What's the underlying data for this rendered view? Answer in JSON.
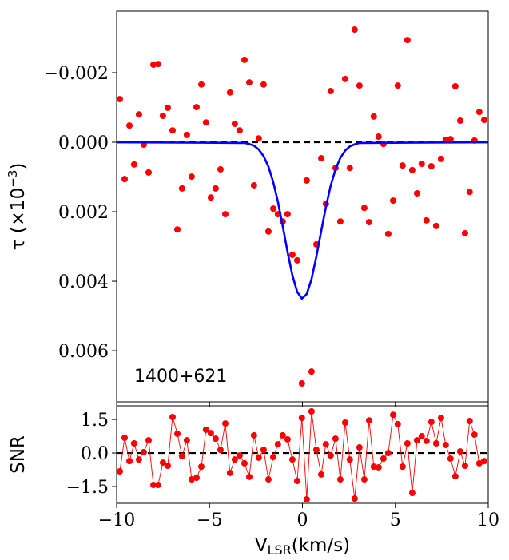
{
  "chart_data": [
    {
      "type": "scatter",
      "ylabel": [
        "τ (×10",
        "−3",
        ")"
      ],
      "annotation": "1400+621",
      "xlim": [
        -10,
        10
      ],
      "xticks": [
        -10,
        -5,
        0,
        5,
        10
      ],
      "xtick_labels": false,
      "ylim": [
        0.00747,
        -0.00377
      ],
      "yticks": [
        {
          "value": -0.002,
          "label": "−0.002"
        },
        {
          "value": 0,
          "label": "0.000"
        },
        {
          "value": 0.002,
          "label": "0.002"
        },
        {
          "value": 0.004,
          "label": "0.004"
        },
        {
          "value": 0.006,
          "label": "0.006"
        }
      ],
      "reference_line": 0,
      "series": [
        {
          "mode": "markers",
          "color": "#ff0000",
          "x": [
            -9.83,
            -9.57,
            -9.31,
            -9.06,
            -8.8,
            -8.54,
            -8.28,
            -8.02,
            -7.77,
            -7.51,
            -7.25,
            -6.99,
            -6.73,
            -6.48,
            -6.22,
            -5.96,
            -5.7,
            -5.44,
            -5.19,
            -4.93,
            -4.67,
            -4.41,
            -4.15,
            -3.9,
            -3.64,
            -3.38,
            -3.12,
            -2.86,
            -2.61,
            -2.35,
            -2.09,
            -1.83,
            -1.57,
            -1.32,
            -1.06,
            -0.8,
            -0.54,
            -0.28,
            -0.03,
            0.23,
            0.49,
            0.75,
            1.01,
            1.26,
            1.52,
            1.78,
            2.04,
            2.3,
            2.55,
            2.81,
            3.07,
            3.33,
            3.59,
            3.84,
            4.1,
            4.36,
            4.62,
            4.88,
            5.13,
            5.39,
            5.65,
            5.91,
            6.17,
            6.42,
            6.68,
            6.94,
            7.2,
            7.46,
            7.71,
            7.97,
            8.23,
            8.49,
            8.75,
            9.0,
            9.26,
            9.52,
            9.78
          ],
          "values": [
            -0.00124,
            0.00106,
            -0.00048,
            0.00064,
            -0.0008,
            7e-05,
            0.00087,
            -0.00223,
            -0.00225,
            -0.00076,
            -0.00099,
            -0.00034,
            0.00251,
            0.00133,
            -0.00021,
            0.00099,
            -0.00101,
            -0.00166,
            -0.00057,
            0.00159,
            0.00133,
            0.00078,
            0.00207,
            -0.00143,
            -0.00053,
            -0.00034,
            -0.00237,
            -0.00172,
            0.00124,
            -0.00011,
            -0.00166,
            0.00257,
            0.00191,
            0.00207,
            0.00228,
            0.00207,
            0.00324,
            0.0034,
            0.00694,
            0.0011,
            0.0066,
            0.00294,
            0.00046,
            0.00177,
            -0.00147,
            0.00074,
            0.00228,
            -0.00182,
            0.00074,
            -0.00324,
            -0.00163,
            0.00189,
            0.0023,
            -0.00074,
            -0.00016,
            5e-05,
            0.00264,
            0.00168,
            -0.00163,
            0.00067,
            -0.00294,
            0.0008,
            0.00147,
            0.00062,
            0.00225,
            0.00069,
            0.00241,
            0.00048,
            -7e-05,
            -9e-05,
            -0.00161,
            -0.00062,
            0.00262,
            0.00143,
            -5e-05,
            -0.00087,
            -0.00064
          ]
        },
        {
          "mode": "line",
          "color": "#0000ff",
          "x": [
            -10,
            -3.12,
            -2.86,
            -2.61,
            -2.35,
            -2.09,
            -1.83,
            -1.57,
            -1.32,
            -1.06,
            -0.8,
            -0.54,
            -0.28,
            -0.03,
            0.23,
            0.49,
            0.75,
            1.01,
            1.26,
            1.52,
            1.78,
            2.04,
            2.3,
            2.55,
            2.81,
            3.07,
            10
          ],
          "values": [
            0,
            2e-05,
            5e-05,
            0.0001,
            0.00021,
            0.0004,
            0.0007,
            0.00115,
            0.00171,
            0.00242,
            0.00316,
            0.00383,
            0.00431,
            0.0045,
            0.00437,
            0.00394,
            0.00329,
            0.00256,
            0.00187,
            0.00125,
            0.00078,
            0.00045,
            0.00024,
            0.00012,
            6e-05,
            2e-05,
            0
          ]
        }
      ]
    },
    {
      "type": "line",
      "ylabel": [
        "SNR"
      ],
      "xlabel": [
        "V",
        "LSR",
        "(km/s)"
      ],
      "xlim": [
        -10,
        10
      ],
      "xticks": [
        {
          "value": -10,
          "label": "−10"
        },
        {
          "value": -5,
          "label": "−5"
        },
        0,
        5,
        10
      ],
      "xtick_labels": true,
      "ylim": [
        -2.25,
        2.11
      ],
      "yticks": [
        {
          "value": -1.5,
          "label": "−1.5"
        },
        {
          "value": 0,
          "label": "0.0"
        },
        1.5
      ],
      "reference_line": 0,
      "series": [
        {
          "mode": "line+markers",
          "color": "#ff0000",
          "x": [
            -9.83,
            -9.57,
            -9.31,
            -9.06,
            -8.8,
            -8.54,
            -8.28,
            -8.02,
            -7.77,
            -7.51,
            -7.25,
            -6.99,
            -6.73,
            -6.48,
            -6.22,
            -5.96,
            -5.7,
            -5.44,
            -5.19,
            -4.93,
            -4.67,
            -4.41,
            -4.15,
            -3.9,
            -3.64,
            -3.38,
            -3.12,
            -2.86,
            -2.61,
            -2.35,
            -2.09,
            -1.83,
            -1.57,
            -1.32,
            -1.06,
            -0.8,
            -0.54,
            -0.28,
            -0.03,
            0.23,
            0.49,
            0.75,
            1.01,
            1.26,
            1.52,
            1.78,
            2.04,
            2.3,
            2.55,
            2.81,
            3.07,
            3.33,
            3.59,
            3.84,
            4.1,
            4.36,
            4.62,
            4.88,
            5.13,
            5.39,
            5.65,
            5.91,
            6.17,
            6.42,
            6.68,
            6.94,
            7.2,
            7.46,
            7.71,
            7.97,
            8.23,
            8.49,
            8.75,
            9.0,
            9.26,
            9.52,
            9.78
          ],
          "values": [
            -0.82,
            0.68,
            -0.36,
            0.43,
            -0.29,
            0.04,
            0.57,
            -1.43,
            -1.43,
            -0.43,
            -0.57,
            1.61,
            0.86,
            -0.14,
            0.57,
            -1.18,
            -1.11,
            -0.61,
            1.04,
            0.89,
            0.64,
            0.14,
            1.32,
            -0.89,
            -0.29,
            -0.11,
            -0.46,
            -1.07,
            0.79,
            -0.21,
            0.14,
            -1.18,
            -0.18,
            0.39,
            0.79,
            0.61,
            -0.29,
            -1.25,
            1.57,
            -2.07,
            1.86,
            0.14,
            -0.96,
            0.39,
            -0.11,
            0.64,
            -1.18,
            1.36,
            -0.29,
            -2.04,
            0.25,
            -1.18,
            1.46,
            -0.61,
            -0.64,
            -0.25,
            0.0,
            1.71,
            1.29,
            -0.61,
            0.43,
            -1.79,
            0.57,
            0.75,
            0.54,
            1.39,
            0.43,
            1.57,
            0.36,
            -0.25,
            -1.04,
            0.07,
            -0.57,
            1.43,
            0.82,
            -0.46,
            -0.36
          ]
        }
      ]
    }
  ]
}
